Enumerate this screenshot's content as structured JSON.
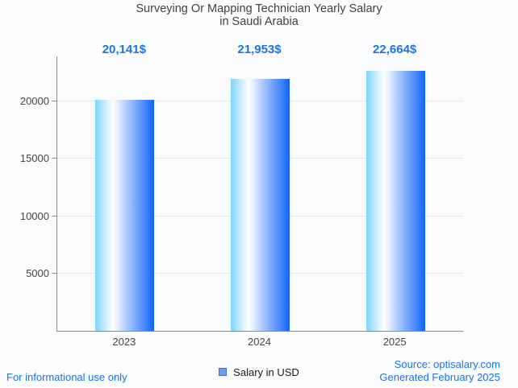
{
  "title": {
    "line1": "Surveying Or Mapping Technician Yearly Salary",
    "line2": "in Saudi Arabia"
  },
  "legend": {
    "label": "Salary in USD",
    "swatch_fill": "#6ba0e9",
    "swatch_border": "#3c6ec6"
  },
  "footer": {
    "left": "For informational use only",
    "source": "Source: optisalary.com",
    "generated": "Generated February 2025"
  },
  "colors": {
    "accent_blue": "#1a73e8",
    "title_text": "#424242",
    "axis_line": "#8b8b8b",
    "gridline": "#e4e6e9",
    "background": "#fbfcfe",
    "bar_gradient_left": "#7ed3fb",
    "bar_gradient_mid": "#ffffff",
    "bar_gradient_right": "#1164fb"
  },
  "chart_data": {
    "type": "bar",
    "title": "Surveying Or Mapping Technician Yearly Salary in Saudi Arabia",
    "categories": [
      "2023",
      "2024",
      "2025"
    ],
    "series": [
      {
        "name": "Salary in USD",
        "values": [
          20141,
          21953,
          22664
        ]
      }
    ],
    "annotations": [
      "20,141$",
      "21,953$",
      "22,664$"
    ],
    "xlabel": "",
    "ylabel": "",
    "ylim": [
      0,
      23950
    ],
    "yticks": [
      5000,
      10000,
      15000,
      20000
    ],
    "grid": true,
    "legend_position": "bottom"
  }
}
